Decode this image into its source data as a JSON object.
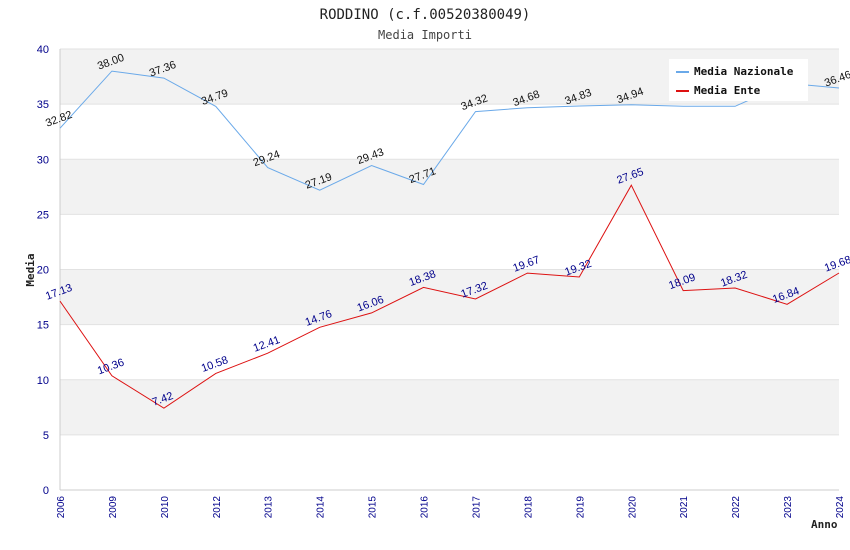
{
  "chart_data": {
    "type": "line",
    "title": "RODDINO (c.f.00520380049)",
    "subtitle": "Media Importi",
    "ylabel": "Media",
    "xlabel": "Anno",
    "ylim": [
      0,
      40
    ],
    "yticks": [
      0,
      5,
      10,
      15,
      20,
      25,
      30,
      35,
      40
    ],
    "categories": [
      "2006",
      "2009",
      "2010",
      "2012",
      "2013",
      "2014",
      "2015",
      "2016",
      "2017",
      "2018",
      "2019",
      "2020",
      "2021",
      "2022",
      "2023",
      "2024"
    ],
    "series": [
      {
        "name": "Media Nazionale",
        "color": "#6aa9e9",
        "values": [
          32.82,
          38.0,
          37.36,
          34.79,
          29.24,
          27.19,
          29.43,
          27.71,
          34.32,
          34.68,
          34.83,
          34.94,
          34.8,
          34.8,
          36.9,
          36.46
        ],
        "labels": [
          "32.82",
          "38.00",
          "37.36",
          "34.79",
          "29.24",
          "27.19",
          "29.43",
          "27.71",
          "34.32",
          "34.68",
          "34.83",
          "34.94",
          "",
          "",
          "",
          "36.46"
        ]
      },
      {
        "name": "Media Ente",
        "color": "#dd1111",
        "values": [
          17.13,
          10.36,
          7.42,
          10.58,
          12.41,
          14.76,
          16.06,
          18.38,
          17.32,
          19.67,
          19.32,
          27.65,
          18.09,
          18.32,
          16.84,
          19.68
        ],
        "labels": [
          "17.13",
          "10.36",
          "7.42",
          "10.58",
          "12.41",
          "14.76",
          "16.06",
          "18.38",
          "17.32",
          "19.67",
          "19.32",
          "27.65",
          "18.09",
          "18.32",
          "16.84",
          "19.68"
        ]
      }
    ],
    "legend_position": "top-right",
    "grid": true
  }
}
